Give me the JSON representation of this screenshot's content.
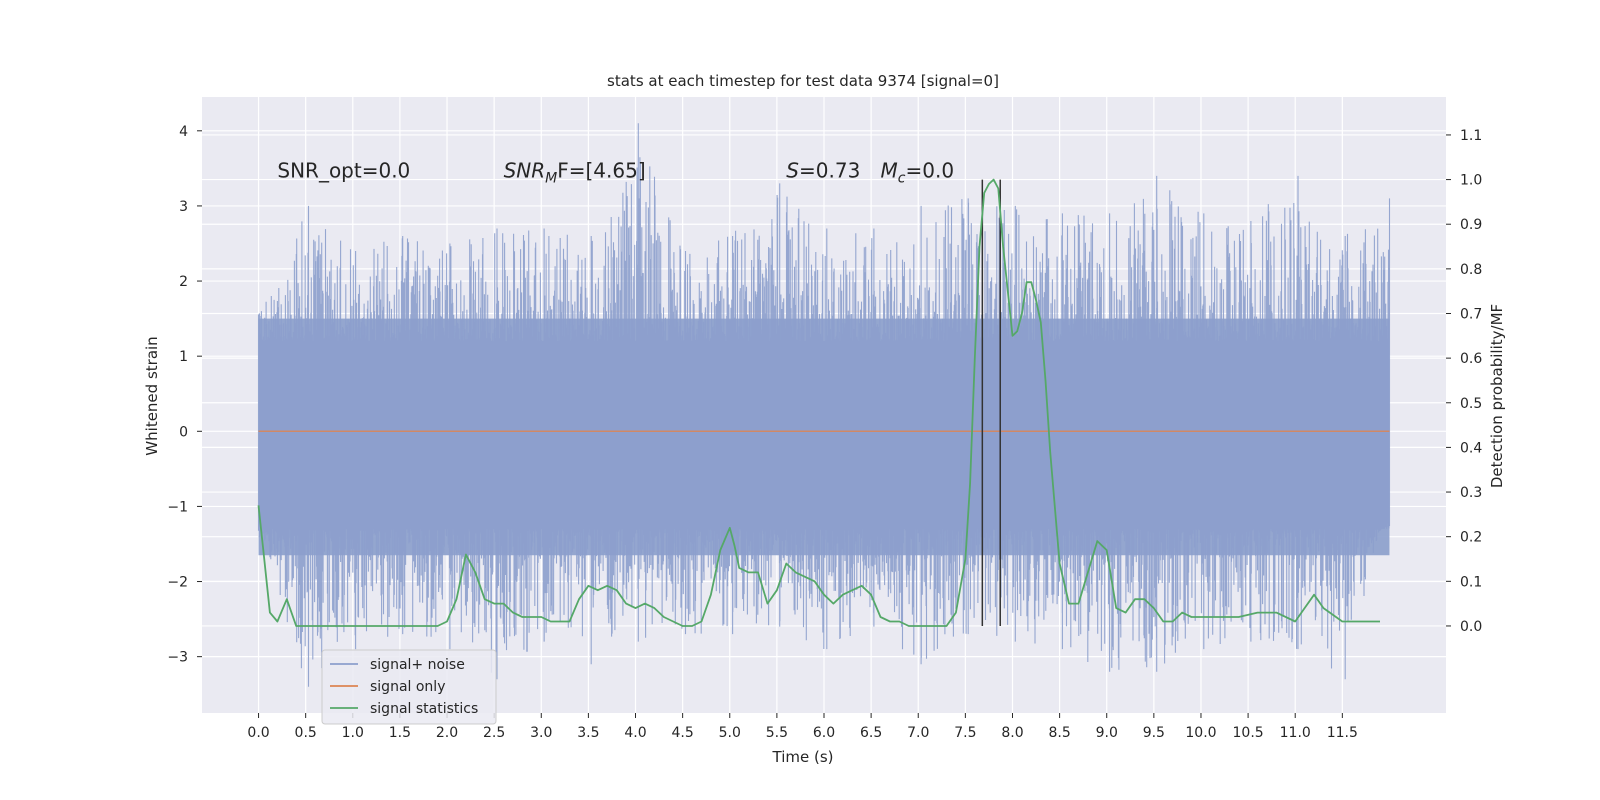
{
  "chart_data": {
    "type": "line",
    "title": "stats at each timestep for test data 9374 [signal=0]",
    "xlabel": "Time (s)",
    "ylabel_left": "Whitened strain",
    "ylabel_right": "Detection probability/MF",
    "xlim": [
      -0.6,
      12.6
    ],
    "ylim_left": [
      -3.75,
      4.45
    ],
    "ylim_right": [
      -0.195,
      1.185
    ],
    "x_ticks": [
      0.0,
      0.5,
      1.0,
      1.5,
      2.0,
      2.5,
      3.0,
      3.5,
      4.0,
      4.5,
      5.0,
      5.5,
      6.0,
      6.5,
      7.0,
      7.5,
      8.0,
      8.5,
      9.0,
      9.5,
      10.0,
      10.5,
      11.0,
      11.5
    ],
    "x_tick_labels": [
      "0.0",
      "0.5",
      "1.0",
      "1.5",
      "2.0",
      "2.5",
      "3.0",
      "3.5",
      "4.0",
      "4.5",
      "5.0",
      "5.5",
      "6.0",
      "6.5",
      "7.0",
      "7.5",
      "8.0",
      "8.5",
      "9.0",
      "9.5",
      "10.0",
      "10.5",
      "11.0",
      "11.5"
    ],
    "y_left_ticks": [
      -3,
      -2,
      -1,
      0,
      1,
      2,
      3,
      4
    ],
    "y_left_tick_labels": [
      "−3",
      "−2",
      "−1",
      "0",
      "1",
      "2",
      "3",
      "4"
    ],
    "y_right_ticks": [
      0.0,
      0.1,
      0.2,
      0.3,
      0.4,
      0.5,
      0.6,
      0.7,
      0.8,
      0.9,
      1.0,
      1.1
    ],
    "y_right_tick_labels": [
      "0.0",
      "0.1",
      "0.2",
      "0.3",
      "0.4",
      "0.5",
      "0.6",
      "0.7",
      "0.8",
      "0.9",
      "1.0",
      "1.1"
    ],
    "grid": true,
    "series": [
      {
        "name": "signal+ noise",
        "axis": "left",
        "color": "#8c9fcc",
        "description_x_range": [
          0.0,
          12.0
        ],
        "envelope": {
          "x": [
            0.0,
            0.5,
            1.0,
            1.5,
            2.0,
            2.5,
            3.0,
            3.5,
            4.0,
            4.5,
            5.0,
            5.5,
            6.0,
            6.5,
            7.0,
            7.5,
            8.0,
            8.5,
            9.0,
            9.5,
            10.0,
            10.5,
            11.0,
            11.5,
            12.0
          ],
          "max": [
            1.6,
            3.0,
            2.4,
            2.6,
            2.5,
            2.7,
            2.7,
            2.6,
            4.1,
            2.4,
            2.6,
            3.3,
            2.7,
            2.7,
            3.0,
            3.1,
            3.0,
            2.9,
            2.9,
            3.4,
            2.9,
            2.8,
            3.4,
            2.6,
            3.1
          ],
          "min": [
            -1.4,
            -3.4,
            -2.9,
            -2.7,
            -2.9,
            -3.3,
            -2.8,
            -3.1,
            -2.8,
            -2.7,
            -2.7,
            -2.6,
            -2.9,
            -2.6,
            -3.1,
            -2.7,
            -2.8,
            -2.9,
            -3.2,
            -3.2,
            -2.9,
            -2.8,
            -2.9,
            -3.3,
            -0.9
          ],
          "dense_band": [
            -1.65,
            1.5
          ]
        }
      },
      {
        "name": "signal only",
        "axis": "left",
        "color": "#dd8452",
        "x": [
          0.0,
          12.0
        ],
        "y": [
          0.0,
          0.0
        ]
      },
      {
        "name": "signal statistics",
        "axis": "right",
        "color": "#55a868",
        "x": [
          0.0,
          0.05,
          0.12,
          0.2,
          0.3,
          0.4,
          0.5,
          0.6,
          0.8,
          1.0,
          1.2,
          1.5,
          1.7,
          1.9,
          2.0,
          2.1,
          2.2,
          2.3,
          2.4,
          2.5,
          2.6,
          2.7,
          2.8,
          2.9,
          3.0,
          3.1,
          3.2,
          3.3,
          3.4,
          3.5,
          3.6,
          3.7,
          3.8,
          3.9,
          4.0,
          4.1,
          4.2,
          4.3,
          4.4,
          4.5,
          4.6,
          4.7,
          4.8,
          4.9,
          5.0,
          5.05,
          5.1,
          5.2,
          5.3,
          5.4,
          5.5,
          5.6,
          5.7,
          5.8,
          5.9,
          6.0,
          6.1,
          6.2,
          6.3,
          6.4,
          6.5,
          6.6,
          6.7,
          6.8,
          6.9,
          7.0,
          7.1,
          7.2,
          7.3,
          7.4,
          7.5,
          7.55,
          7.6,
          7.65,
          7.7,
          7.75,
          7.8,
          7.85,
          7.9,
          7.95,
          8.0,
          8.05,
          8.1,
          8.15,
          8.2,
          8.25,
          8.3,
          8.35,
          8.4,
          8.5,
          8.6,
          8.7,
          8.8,
          8.9,
          9.0,
          9.1,
          9.2,
          9.3,
          9.4,
          9.5,
          9.6,
          9.7,
          9.8,
          9.9,
          10.0,
          10.2,
          10.4,
          10.6,
          10.8,
          11.0,
          11.1,
          11.2,
          11.3,
          11.5,
          11.7,
          11.9
        ],
        "y": [
          0.27,
          0.17,
          0.03,
          0.01,
          0.06,
          0.0,
          0.0,
          0.0,
          0.0,
          0.0,
          0.0,
          0.0,
          0.0,
          0.0,
          0.01,
          0.06,
          0.16,
          0.12,
          0.06,
          0.05,
          0.05,
          0.03,
          0.02,
          0.02,
          0.02,
          0.01,
          0.01,
          0.01,
          0.06,
          0.09,
          0.08,
          0.09,
          0.08,
          0.05,
          0.04,
          0.05,
          0.04,
          0.02,
          0.01,
          0.0,
          0.0,
          0.01,
          0.07,
          0.17,
          0.22,
          0.18,
          0.13,
          0.12,
          0.12,
          0.05,
          0.08,
          0.14,
          0.12,
          0.11,
          0.1,
          0.07,
          0.05,
          0.07,
          0.08,
          0.09,
          0.07,
          0.02,
          0.01,
          0.01,
          0.0,
          0.0,
          0.0,
          0.0,
          0.0,
          0.03,
          0.15,
          0.32,
          0.6,
          0.85,
          0.97,
          0.99,
          1.0,
          0.98,
          0.85,
          0.75,
          0.65,
          0.66,
          0.7,
          0.77,
          0.77,
          0.73,
          0.68,
          0.55,
          0.39,
          0.14,
          0.05,
          0.05,
          0.12,
          0.19,
          0.17,
          0.04,
          0.03,
          0.06,
          0.06,
          0.04,
          0.01,
          0.01,
          0.03,
          0.02,
          0.02,
          0.02,
          0.02,
          0.03,
          0.03,
          0.01,
          0.04,
          0.07,
          0.04,
          0.01,
          0.01,
          0.01
        ]
      }
    ],
    "vertical_lines": [
      {
        "x": 7.68,
        "y_range_right": [
          0.0,
          1.0
        ],
        "color": "#333333"
      },
      {
        "x": 7.87,
        "y_range_right": [
          0.0,
          1.0
        ],
        "color": "#333333"
      }
    ],
    "annotations": [
      {
        "text": "SNR_opt=0.0",
        "x": 0.2,
        "y_right": 1.0
      },
      {
        "text_main": "SNR",
        "text_sub": "M",
        "text_rest": "F=[4.65]",
        "x": 2.6,
        "y_right": 1.0
      },
      {
        "text_main": "S",
        "text_rest": "=0.73",
        "x": 5.6,
        "y_right": 1.0
      },
      {
        "text_main": "M",
        "text_sub": "c",
        "text_rest": "=0.0",
        "x": 6.6,
        "y_right": 1.0
      }
    ],
    "legend": {
      "placement": "lower-left",
      "entries": [
        {
          "label": "signal+ noise",
          "color": "#8c9fcc"
        },
        {
          "label": "signal only",
          "color": "#dd8452"
        },
        {
          "label": "signal statistics",
          "color": "#55a868"
        }
      ]
    },
    "colors": {
      "plot_background": "#eaeaf2",
      "grid": "#ffffff",
      "text": "#262626"
    }
  }
}
